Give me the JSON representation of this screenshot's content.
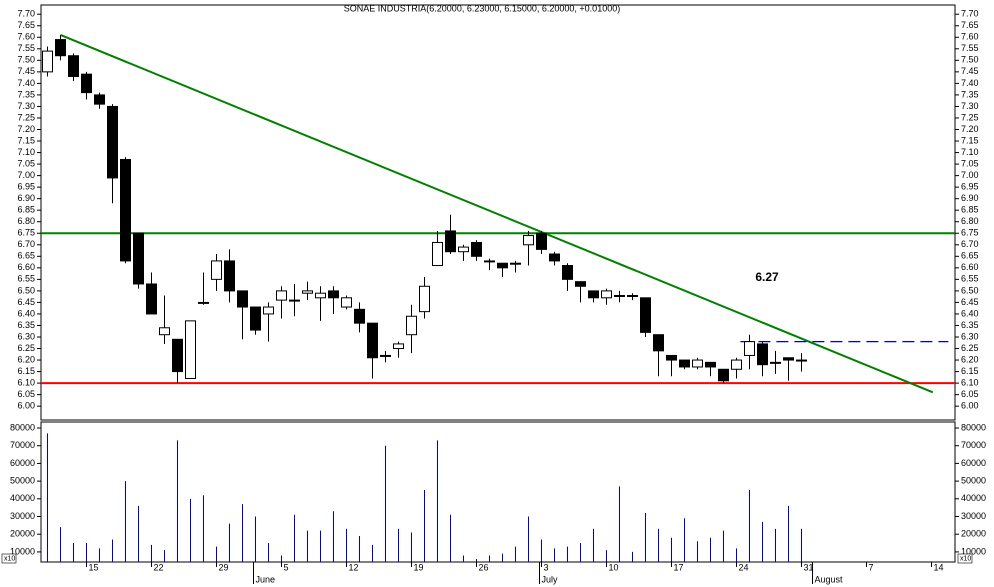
{
  "chart_data": [
    {
      "type": "candlestick",
      "title": "SONAE INDUSTRIA(6.20000, 6.23000, 6.15000, 6.20000, +0.01000)",
      "open": [
        7.45,
        7.59,
        7.52,
        7.44,
        7.35,
        7.3,
        7.07,
        6.75,
        6.53,
        6.31,
        6.29,
        6.12,
        6.45,
        6.55,
        6.63,
        6.5,
        6.43,
        6.4,
        6.46,
        6.46,
        6.49,
        6.47,
        6.5,
        6.43,
        6.42,
        6.36,
        6.22,
        6.25,
        6.31,
        6.41,
        6.61,
        6.76,
        6.67,
        6.71,
        6.63,
        6.62,
        6.62,
        6.7,
        6.75,
        6.66,
        6.61,
        6.54,
        6.5,
        6.47,
        6.48,
        6.48,
        6.47,
        6.31,
        6.22,
        6.2,
        6.17,
        6.19,
        6.16,
        6.16,
        6.22,
        6.27,
        6.19,
        6.21,
        6.2,
        null,
        null,
        null,
        null,
        null,
        null,
        null,
        null,
        null,
        null,
        null
      ],
      "high": [
        7.56,
        7.61,
        7.53,
        7.45,
        7.36,
        7.31,
        7.08,
        6.75,
        6.58,
        6.48,
        6.29,
        6.37,
        6.58,
        6.66,
        6.68,
        6.5,
        6.43,
        6.45,
        6.52,
        6.53,
        6.54,
        6.52,
        6.52,
        6.48,
        6.45,
        6.36,
        6.24,
        6.28,
        6.44,
        6.56,
        6.76,
        6.83,
        6.7,
        6.72,
        6.64,
        6.62,
        6.63,
        6.76,
        6.76,
        6.67,
        6.62,
        6.54,
        6.5,
        6.51,
        6.5,
        6.49,
        6.47,
        6.31,
        6.22,
        6.2,
        6.21,
        6.19,
        6.16,
        6.21,
        6.31,
        6.28,
        6.24,
        6.21,
        6.23,
        null,
        null,
        null,
        null,
        null,
        null,
        null,
        null,
        null,
        null,
        null
      ],
      "low": [
        7.43,
        7.5,
        7.41,
        7.33,
        7.29,
        6.88,
        6.62,
        6.51,
        6.4,
        6.27,
        6.1,
        6.12,
        6.44,
        6.5,
        6.45,
        6.29,
        6.31,
        6.28,
        6.38,
        6.39,
        6.46,
        6.37,
        6.4,
        6.42,
        6.32,
        6.12,
        6.19,
        6.21,
        6.23,
        6.38,
        6.61,
        6.66,
        6.63,
        6.63,
        6.59,
        6.56,
        6.58,
        6.61,
        6.66,
        6.61,
        6.5,
        6.45,
        6.45,
        6.44,
        6.45,
        6.46,
        6.3,
        6.13,
        6.13,
        6.16,
        6.16,
        6.13,
        6.1,
        6.12,
        6.16,
        6.13,
        6.14,
        6.11,
        6.15,
        null,
        null,
        null,
        null,
        null,
        null,
        null,
        null,
        null,
        null,
        null
      ],
      "close": [
        7.54,
        7.52,
        7.43,
        7.36,
        7.31,
        6.99,
        6.63,
        6.53,
        6.4,
        6.34,
        6.15,
        6.37,
        6.45,
        6.63,
        6.5,
        6.43,
        6.33,
        6.43,
        6.5,
        6.46,
        6.5,
        6.49,
        6.47,
        6.47,
        6.36,
        6.21,
        6.22,
        6.27,
        6.39,
        6.52,
        6.71,
        6.67,
        6.69,
        6.65,
        6.63,
        6.6,
        6.62,
        6.74,
        6.68,
        6.63,
        6.55,
        6.52,
        6.47,
        6.5,
        6.48,
        6.48,
        6.32,
        6.24,
        6.2,
        6.17,
        6.2,
        6.17,
        6.11,
        6.2,
        6.28,
        6.18,
        6.19,
        6.2,
        6.2,
        null,
        null,
        null,
        null,
        null,
        null,
        null,
        null,
        null,
        null,
        null
      ],
      "ylim": [
        5.94,
        7.74
      ],
      "yticks": [
        {
          "value": 6.0,
          "label": "6.00"
        },
        {
          "value": 6.05,
          "label": "6.05"
        },
        {
          "value": 6.1,
          "label": "6.10"
        },
        {
          "value": 6.15,
          "label": "6.15"
        },
        {
          "value": 6.2,
          "label": "6.20"
        },
        {
          "value": 6.25,
          "label": "6.25"
        },
        {
          "value": 6.3,
          "label": "6.30"
        },
        {
          "value": 6.35,
          "label": "6.35"
        },
        {
          "value": 6.4,
          "label": "6.40"
        },
        {
          "value": 6.45,
          "label": "6.45"
        },
        {
          "value": 6.5,
          "label": "6.50"
        },
        {
          "value": 6.55,
          "label": "6.55"
        },
        {
          "value": 6.6,
          "label": "6.60"
        },
        {
          "value": 6.65,
          "label": "6.65"
        },
        {
          "value": 6.7,
          "label": "6.70"
        },
        {
          "value": 6.75,
          "label": "6.75"
        },
        {
          "value": 6.8,
          "label": "6.80"
        },
        {
          "value": 6.85,
          "label": "6.85"
        },
        {
          "value": 6.9,
          "label": "6.90"
        },
        {
          "value": 6.95,
          "label": "6.95"
        },
        {
          "value": 7.0,
          "label": "7.00"
        },
        {
          "value": 7.05,
          "label": "7.05"
        },
        {
          "value": 7.1,
          "label": "7.10"
        },
        {
          "value": 7.15,
          "label": "7.15"
        },
        {
          "value": 7.2,
          "label": "7.20"
        },
        {
          "value": 7.25,
          "label": "7.25"
        },
        {
          "value": 7.3,
          "label": "7.30"
        },
        {
          "value": 7.35,
          "label": "7.35"
        },
        {
          "value": 7.4,
          "label": "7.40"
        },
        {
          "value": 7.45,
          "label": "7.45"
        },
        {
          "value": 7.5,
          "label": "7.50"
        },
        {
          "value": 7.55,
          "label": "7.55"
        },
        {
          "value": 7.6,
          "label": "7.60"
        },
        {
          "value": 7.65,
          "label": "7.65"
        },
        {
          "value": 7.7,
          "label": "7.70"
        }
      ],
      "hlines": [
        {
          "value": 6.75,
          "color": "#008000"
        },
        {
          "value": 6.1,
          "color": "#ff0000"
        }
      ],
      "trendlines": [
        {
          "from": [
            1,
            7.61
          ],
          "to": [
            68.1,
            6.06
          ],
          "color": "#008000",
          "dashed": false
        },
        {
          "from": [
            53.3,
            6.28
          ],
          "to": [
            69.3,
            6.28
          ],
          "color": "#0000cc",
          "dashed": true
        }
      ],
      "annotation": "6.27"
    },
    {
      "type": "bar",
      "categories": [
        null,
        null,
        null,
        "15",
        null,
        null,
        null,
        null,
        "22",
        null,
        null,
        null,
        null,
        "29",
        null,
        null,
        null,
        null,
        "5",
        null,
        null,
        null,
        null,
        "12",
        null,
        null,
        null,
        null,
        "19",
        null,
        null,
        null,
        null,
        "26",
        null,
        null,
        null,
        null,
        "3",
        null,
        null,
        null,
        null,
        "10",
        null,
        null,
        null,
        null,
        "17",
        null,
        null,
        null,
        null,
        "24",
        null,
        null,
        null,
        null,
        "31",
        null,
        null,
        null,
        null,
        "7",
        null,
        null,
        null,
        null,
        "14",
        null
      ],
      "month_categories": [
        null,
        null,
        null,
        null,
        null,
        null,
        null,
        null,
        null,
        null,
        null,
        null,
        null,
        null,
        null,
        null,
        "June",
        null,
        null,
        null,
        null,
        null,
        null,
        null,
        null,
        null,
        null,
        null,
        null,
        null,
        null,
        null,
        null,
        null,
        null,
        null,
        null,
        null,
        "July",
        null,
        null,
        null,
        null,
        null,
        null,
        null,
        null,
        null,
        null,
        null,
        null,
        null,
        null,
        null,
        null,
        null,
        null,
        null,
        null,
        "August",
        null,
        null,
        null,
        null,
        null,
        null,
        null,
        null,
        null,
        null
      ],
      "values": [
        77000,
        24000,
        15000,
        15000,
        12000,
        17000,
        50000,
        36000,
        14000,
        11000,
        73000,
        40000,
        42000,
        13000,
        26000,
        37000,
        30000,
        15000,
        8000,
        31000,
        22000,
        22000,
        33000,
        23000,
        19000,
        14000,
        70000,
        23000,
        21000,
        45000,
        73000,
        31000,
        8000,
        6000,
        8000,
        9000,
        13000,
        30000,
        17000,
        12000,
        13000,
        15000,
        23000,
        11000,
        47000,
        10000,
        32000,
        23000,
        18000,
        29000,
        16000,
        18000,
        22000,
        12000,
        45000,
        27000,
        23000,
        36000,
        23000,
        null,
        null,
        null,
        null,
        null,
        null,
        null,
        null,
        null,
        null,
        null
      ],
      "color": "#0000cc",
      "ylim": [
        4300,
        83400
      ],
      "yticks": [
        10000,
        20000,
        30000,
        40000,
        50000,
        60000,
        70000,
        80000
      ],
      "unit_label": "x10"
    }
  ]
}
